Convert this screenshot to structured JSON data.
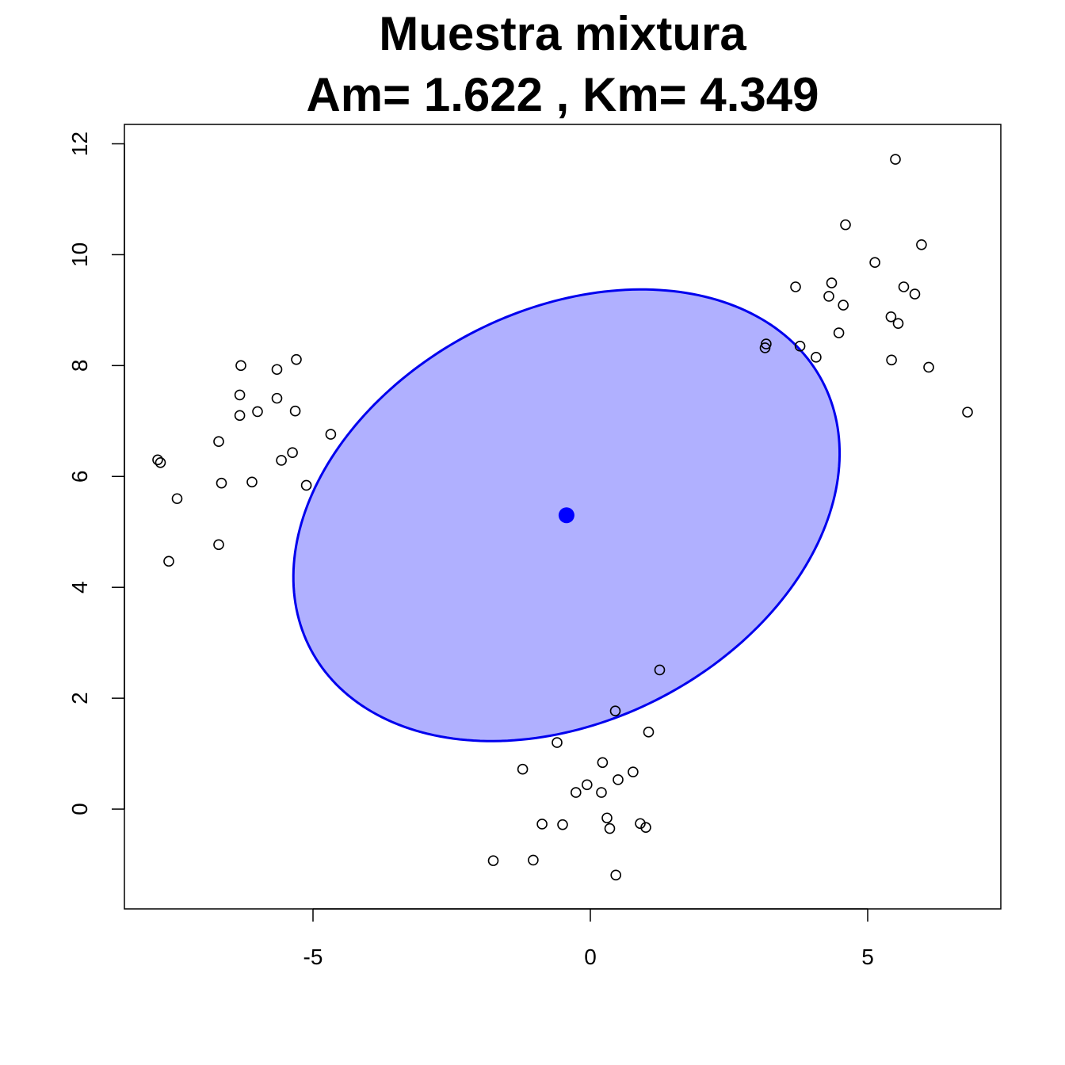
{
  "chart_data": {
    "type": "scatter",
    "title": "Muestra mixtura",
    "subtitle": "Am= 1.622 , Km= 4.349",
    "xlabel": "",
    "ylabel": "",
    "xlim": [
      -8.4,
      7.4
    ],
    "ylim": [
      -1.8,
      12.35
    ],
    "x_ticks": [
      -5,
      0,
      5
    ],
    "x_tick_labels": [
      "-5",
      "0",
      "5"
    ],
    "y_ticks": [
      0,
      2,
      4,
      6,
      8,
      10,
      12
    ],
    "y_tick_labels": [
      "0",
      "2",
      "4",
      "6",
      "8",
      "10",
      "12"
    ],
    "grid": false,
    "colors": {
      "ellipse_fill": "#b0b0ff",
      "ellipse_stroke": "#0000ee",
      "center": "#0000ff",
      "points": "#000000"
    },
    "center": {
      "x": -0.43,
      "y": 5.3
    },
    "ellipse": {
      "cx": -0.43,
      "cy": 5.3,
      "axis_u": [
        4.15,
        3.05
      ],
      "axis_v": [
        -2.65,
        2.7
      ]
    },
    "points": [
      [
        -7.8,
        6.3
      ],
      [
        -7.75,
        6.25
      ],
      [
        -7.45,
        5.6
      ],
      [
        -7.6,
        4.47
      ],
      [
        -6.7,
        6.63
      ],
      [
        -6.65,
        5.88
      ],
      [
        -6.7,
        4.77
      ],
      [
        -6.3,
        8.0
      ],
      [
        -6.32,
        7.47
      ],
      [
        -6.32,
        7.1
      ],
      [
        -6.0,
        7.17
      ],
      [
        -6.1,
        5.9
      ],
      [
        -5.65,
        7.93
      ],
      [
        -5.65,
        7.41
      ],
      [
        -5.57,
        6.29
      ],
      [
        -5.37,
        6.43
      ],
      [
        -5.3,
        8.11
      ],
      [
        -5.32,
        7.18
      ],
      [
        -5.12,
        5.84
      ],
      [
        -4.68,
        6.76
      ],
      [
        1.25,
        2.51
      ],
      [
        0.45,
        1.77
      ],
      [
        1.05,
        1.39
      ],
      [
        -0.6,
        1.2
      ],
      [
        0.22,
        0.84
      ],
      [
        0.77,
        0.67
      ],
      [
        -1.22,
        0.72
      ],
      [
        0.5,
        0.53
      ],
      [
        -0.06,
        0.44
      ],
      [
        -0.26,
        0.3
      ],
      [
        0.2,
        0.3
      ],
      [
        0.3,
        -0.16
      ],
      [
        -0.87,
        -0.27
      ],
      [
        -0.5,
        -0.28
      ],
      [
        0.9,
        -0.26
      ],
      [
        0.35,
        -0.35
      ],
      [
        1.0,
        -0.33
      ],
      [
        -1.75,
        -0.93
      ],
      [
        -1.03,
        -0.92
      ],
      [
        0.46,
        -1.19
      ],
      [
        5.5,
        11.72
      ],
      [
        4.6,
        10.54
      ],
      [
        5.13,
        9.86
      ],
      [
        5.97,
        10.18
      ],
      [
        3.7,
        9.42
      ],
      [
        4.35,
        9.49
      ],
      [
        5.65,
        9.42
      ],
      [
        4.3,
        9.25
      ],
      [
        5.85,
        9.29
      ],
      [
        4.56,
        9.09
      ],
      [
        5.42,
        8.88
      ],
      [
        5.55,
        8.76
      ],
      [
        4.48,
        8.59
      ],
      [
        3.17,
        8.39
      ],
      [
        3.15,
        8.32
      ],
      [
        3.78,
        8.35
      ],
      [
        4.07,
        8.15
      ],
      [
        5.43,
        8.1
      ],
      [
        6.1,
        7.97
      ],
      [
        6.8,
        7.16
      ]
    ]
  }
}
